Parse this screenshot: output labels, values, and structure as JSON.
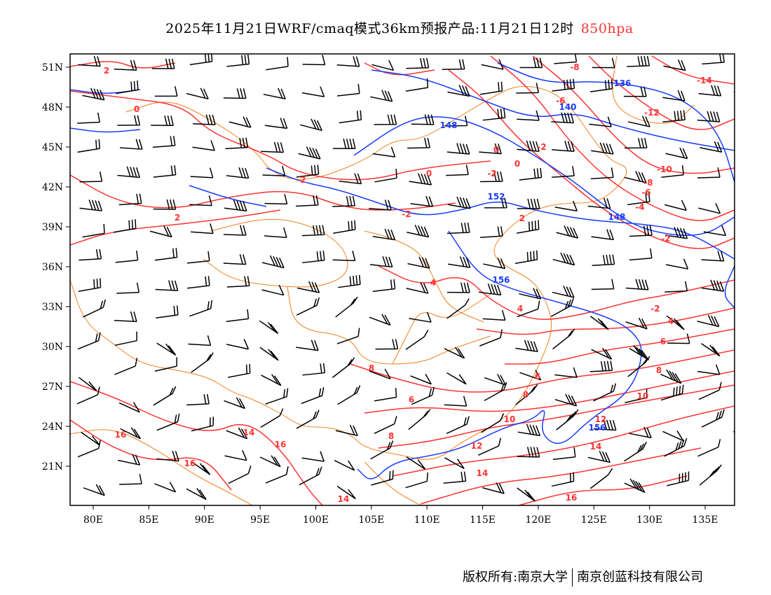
{
  "title": {
    "main": "2025年11月21日WRF/cmaq模式36km预报产品:11月21日12时",
    "level": "850hpa"
  },
  "footer": {
    "left": "版权所有:南京大学",
    "right": "南京创蓝科技有限公司"
  },
  "axes": {
    "lat_ticks": [
      "51N",
      "48N",
      "45N",
      "42N",
      "39N",
      "36N",
      "33N",
      "30N",
      "27N",
      "24N",
      "21N"
    ],
    "lon_ticks": [
      "80E",
      "85E",
      "90E",
      "95E",
      "100E",
      "105E",
      "110E",
      "115E",
      "120E",
      "125E",
      "130E",
      "135E"
    ]
  },
  "temperature_labels": [
    "2",
    "0",
    "-2",
    "2",
    "-2",
    "2",
    "0",
    "-2",
    "0",
    "0",
    "-2",
    "-8",
    "-6",
    "-12",
    "-10",
    "-8",
    "-6",
    "-4",
    "-2",
    "-14",
    "-2",
    "4",
    "6",
    "8",
    "10",
    "12",
    "14",
    "16",
    "14",
    "12",
    "10",
    "8",
    "6",
    "4",
    "4",
    "8",
    "6",
    "8",
    "14",
    "16",
    "16",
    "16",
    "14"
  ],
  "height_labels": [
    "136",
    "140",
    "148",
    "152",
    "148",
    "156",
    "156"
  ],
  "colors": {
    "temperature": "#ff3333",
    "height": "#1a3cff",
    "border": "#f08020",
    "wind": "#000000"
  }
}
